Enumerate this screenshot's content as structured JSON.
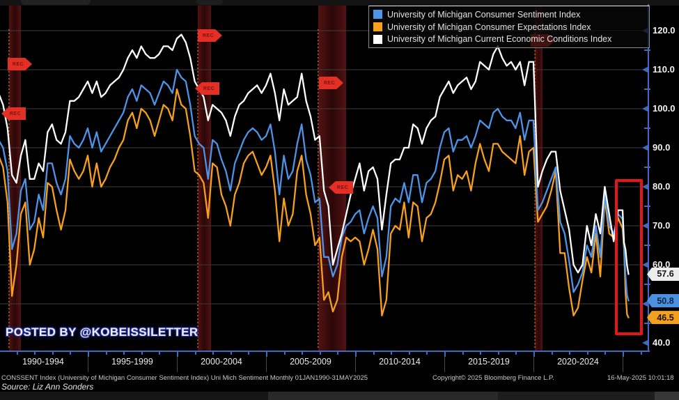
{
  "watermark": {
    "text": "POSTED BY @KOBEISSILETTER"
  },
  "rec_label": "REC",
  "legend": {
    "items": [
      {
        "label": "University of Michigan Consumer Sentiment Index",
        "color": "#4d94e8"
      },
      {
        "label": "University of Michigan Consumer Expectations Index",
        "color": "#f7a01e"
      },
      {
        "label": "University of Michigan Current Economic Conditions Index",
        "color": "#ffffff"
      }
    ]
  },
  "y_axis": {
    "labels": [
      {
        "value": 120,
        "text": "120.0"
      },
      {
        "value": 110,
        "text": "110.0"
      },
      {
        "value": 100,
        "text": "100.0"
      },
      {
        "value": 90,
        "text": "90.0"
      },
      {
        "value": 80,
        "text": "80.0"
      },
      {
        "value": 70,
        "text": "70.0"
      },
      {
        "value": 60,
        "text": "60.0"
      },
      {
        "value": 50,
        "text": "50.0"
      },
      {
        "value": 40,
        "text": "40.0"
      }
    ],
    "gridline_values": [
      120,
      110,
      100,
      90,
      80,
      70,
      60,
      50
    ],
    "axis_color": "#3f6cc2",
    "grid_color": "#3e3e3e"
  },
  "x_axis": {
    "labels": [
      "1990-1994",
      "1995-1999",
      "2000-2004",
      "2005-2009",
      "2010-2014",
      "2015-2019",
      "2020-2024"
    ]
  },
  "value_tags": [
    {
      "text": "57.6",
      "value": 57.6,
      "bg": "#ececec",
      "fg": "#111111"
    },
    {
      "text": "50.8",
      "value": 50.8,
      "bg": "#4a90e0",
      "fg": "#0d2440"
    },
    {
      "text": "46.5",
      "value": 46.5,
      "bg": "#f2a01d",
      "fg": "#1a1000"
    }
  ],
  "footer": {
    "ticker_line": "CONSSENT Index (University of Michigan Consumer Sentiment Index) Uni Mich Sentiment  Monthly 01JAN1990-31MAY2025",
    "copyright": "Copyright© 2025 Bloomberg Finance L.P.",
    "timestamp": "16-May-2025 10:01:18",
    "source": "Source: Liz Ann Sonders"
  },
  "chart_data": {
    "type": "line",
    "title": "",
    "xlabel": "",
    "ylabel": "",
    "ylim": [
      40,
      120
    ],
    "xlim": [
      1990,
      2026.4
    ],
    "grid": "horizontal",
    "legend_position": "top-right",
    "highlight_box_note": "red box highlighting 2025 plunge",
    "latest_values": {
      "sentiment": 50.8,
      "expectations": 46.5,
      "conditions": 57.6
    },
    "recessions": [
      {
        "start": 1990.58,
        "end": 1991.25
      },
      {
        "start": 2001.17,
        "end": 2001.92
      },
      {
        "start": 2007.92,
        "end": 2009.5
      },
      {
        "start": 2020.08,
        "end": 2020.5
      }
    ],
    "x": [
      1990,
      1990.25,
      1990.5,
      1990.75,
      1991,
      1991.25,
      1991.5,
      1991.75,
      1992,
      1992.25,
      1992.5,
      1992.75,
      1993,
      1993.25,
      1993.5,
      1993.75,
      1994,
      1994.25,
      1994.5,
      1994.75,
      1995,
      1995.25,
      1995.5,
      1995.75,
      1996,
      1996.25,
      1996.5,
      1996.75,
      1997,
      1997.25,
      1997.5,
      1997.75,
      1998,
      1998.25,
      1998.5,
      1998.75,
      1999,
      1999.25,
      1999.5,
      1999.75,
      2000,
      2000.25,
      2000.5,
      2000.75,
      2001,
      2001.25,
      2001.5,
      2001.75,
      2002,
      2002.25,
      2002.5,
      2002.75,
      2003,
      2003.25,
      2003.5,
      2003.75,
      2004,
      2004.25,
      2004.5,
      2004.75,
      2005,
      2005.25,
      2005.5,
      2005.75,
      2006,
      2006.25,
      2006.5,
      2006.75,
      2007,
      2007.25,
      2007.5,
      2007.75,
      2008,
      2008.25,
      2008.5,
      2008.75,
      2009,
      2009.25,
      2009.5,
      2009.75,
      2010,
      2010.25,
      2010.5,
      2010.75,
      2011,
      2011.25,
      2011.5,
      2011.75,
      2012,
      2012.25,
      2012.5,
      2012.75,
      2013,
      2013.25,
      2013.5,
      2013.75,
      2014,
      2014.25,
      2014.5,
      2014.75,
      2015,
      2015.25,
      2015.5,
      2015.75,
      2016,
      2016.25,
      2016.5,
      2016.75,
      2017,
      2017.25,
      2017.5,
      2017.75,
      2018,
      2018.25,
      2018.5,
      2018.75,
      2019,
      2019.25,
      2019.5,
      2019.75,
      2020,
      2020.25,
      2020.5,
      2020.75,
      2021,
      2021.25,
      2021.5,
      2021.75,
      2022,
      2022.25,
      2022.5,
      2022.75,
      2023,
      2023.25,
      2023.5,
      2023.75,
      2024,
      2024.25,
      2024.5,
      2024.75,
      2025,
      2025.083,
      2025.167,
      2025.25,
      2025.333
    ],
    "series": [
      {
        "name": "University of Michigan Consumer Sentiment Index",
        "color": "#4d94e8",
        "values": [
          92,
          90,
          84,
          64,
          68,
          79,
          82,
          69,
          71,
          78,
          74,
          86,
          86,
          81,
          78,
          82,
          93,
          91,
          90,
          92,
          95,
          90,
          94,
          89,
          91,
          93,
          95,
          97,
          99,
          103,
          105,
          102,
          106,
          105,
          104,
          101,
          104,
          107,
          106,
          104,
          110,
          108,
          107,
          101,
          93,
          91,
          90,
          82,
          92,
          91,
          87,
          84,
          79,
          86,
          89,
          92,
          94,
          95,
          94,
          92,
          93,
          96,
          89,
          78,
          88,
          82,
          84,
          91,
          96,
          87,
          83,
          76,
          77,
          62,
          62,
          57,
          60,
          67,
          70,
          71,
          73,
          74,
          68,
          72,
          75,
          72,
          57,
          62,
          75,
          77,
          76,
          81,
          76,
          83,
          83,
          76,
          81,
          82,
          84,
          90,
          94,
          95,
          89,
          92,
          92,
          93,
          90,
          93,
          97,
          96,
          95,
          99,
          100,
          98,
          97,
          97,
          95,
          99,
          92,
          97,
          97,
          74,
          76,
          79,
          82,
          85,
          71,
          68,
          61,
          53,
          55,
          58,
          65,
          62,
          70,
          62,
          78,
          70,
          68,
          73,
          71.7,
          64.7,
          57.0,
          52.2,
          50.8
        ]
      },
      {
        "name": "University of Michigan Consumer Expectations Index",
        "color": "#f7a01e",
        "values": [
          88,
          85,
          76,
          52,
          60,
          73,
          76,
          60,
          64,
          72,
          67,
          81,
          80,
          74,
          69,
          74,
          87,
          84,
          82,
          84,
          88,
          80,
          86,
          80,
          82,
          85,
          87,
          90,
          92,
          97,
          99,
          95,
          100,
          99,
          97,
          93,
          97,
          101,
          100,
          97,
          105,
          101,
          100,
          93,
          84,
          83,
          81,
          72,
          86,
          85,
          78,
          75,
          70,
          78,
          81,
          86,
          88,
          89,
          86,
          83,
          85,
          88,
          79,
          66,
          77,
          70,
          73,
          84,
          88,
          78,
          73,
          65,
          67,
          51,
          53,
          48,
          51,
          62,
          67,
          66,
          67,
          66,
          60,
          64,
          69,
          64,
          47,
          51,
          68,
          70,
          69,
          76,
          67,
          76,
          75,
          66,
          72,
          73,
          76,
          81,
          87,
          88,
          79,
          83,
          82,
          84,
          79,
          86,
          91,
          87,
          84,
          91,
          91,
          89,
          88,
          87,
          86,
          93,
          83,
          89,
          90,
          71,
          73,
          75,
          79,
          84,
          63,
          63,
          54,
          47,
          49,
          56,
          62,
          58,
          68,
          57,
          77,
          68,
          67,
          72,
          69.3,
          64.0,
          52.6,
          47.3,
          46.5
        ]
      },
      {
        "name": "University of Michigan Current Economic Conditions Index",
        "color": "#ffffff",
        "values": [
          104,
          101,
          95,
          83,
          81,
          88,
          92,
          82,
          82,
          86,
          84,
          94,
          96,
          92,
          91,
          94,
          102,
          102,
          103,
          105,
          107,
          104,
          107,
          103,
          104,
          106,
          107,
          108,
          110,
          113,
          115,
          113,
          116,
          114,
          113,
          113,
          114,
          116,
          116,
          115,
          118,
          119,
          117,
          113,
          107,
          105,
          103,
          97,
          101,
          100,
          99,
          97,
          93,
          98,
          101,
          102,
          104,
          105,
          106,
          104,
          106,
          109,
          104,
          97,
          105,
          101,
          102,
          103,
          109,
          102,
          98,
          92,
          93,
          79,
          75,
          60,
          64,
          68,
          73,
          78,
          82,
          86,
          79,
          84,
          85,
          82,
          69,
          78,
          86,
          87,
          87,
          90,
          90,
          96,
          95,
          91,
          95,
          97,
          98,
          103,
          105,
          107,
          104,
          106,
          107,
          108,
          105,
          107,
          112,
          111,
          110,
          114,
          116,
          113,
          111,
          112,
          110,
          112,
          106,
          112,
          112,
          80,
          84,
          87,
          89,
          89,
          79,
          74,
          69,
          60,
          58,
          60,
          70,
          65,
          73,
          68,
          80,
          73,
          66,
          74,
          74.0,
          65.7,
          63.8,
          59.8,
          57.6
        ]
      }
    ]
  }
}
